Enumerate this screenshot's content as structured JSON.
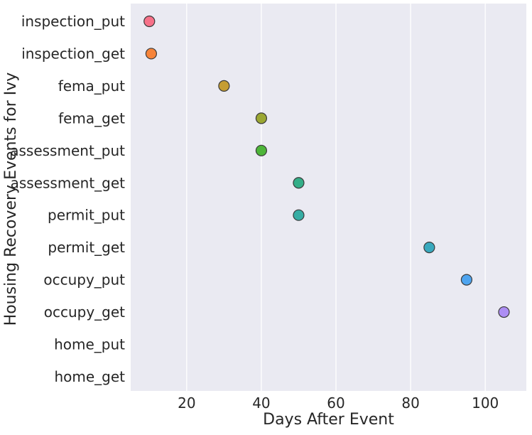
{
  "chart_data": {
    "type": "scatter",
    "title": "",
    "xlabel": "Days After Event",
    "ylabel": "Housing Recovery Events for Ivy",
    "xlim": [
      5,
      111
    ],
    "x_ticks": [
      20,
      40,
      60,
      80,
      100
    ],
    "categories": [
      "inspection_put",
      "inspection_get",
      "fema_put",
      "fema_get",
      "assessment_put",
      "assessment_get",
      "permit_put",
      "permit_get",
      "occupy_put",
      "occupy_get",
      "home_put",
      "home_get"
    ],
    "points": [
      {
        "category": "inspection_put",
        "x": 10,
        "color": "#f77189"
      },
      {
        "category": "inspection_get",
        "x": 10.5,
        "color": "#f7843a"
      },
      {
        "category": "fema_put",
        "x": 30,
        "color": "#c59d33"
      },
      {
        "category": "fema_get",
        "x": 40,
        "color": "#9ba733"
      },
      {
        "category": "assessment_put",
        "x": 40,
        "color": "#4db539"
      },
      {
        "category": "assessment_get",
        "x": 50,
        "color": "#34ae88"
      },
      {
        "category": "permit_put",
        "x": 50,
        "color": "#36ada4"
      },
      {
        "category": "permit_get",
        "x": 85,
        "color": "#39a9be"
      },
      {
        "category": "occupy_put",
        "x": 95,
        "color": "#4ea4ef"
      },
      {
        "category": "occupy_get",
        "x": 105,
        "color": "#ad8ef4"
      }
    ],
    "grid": true,
    "legend": "none",
    "background_color": "#eaeaf2",
    "grid_color": "#ffffff"
  }
}
